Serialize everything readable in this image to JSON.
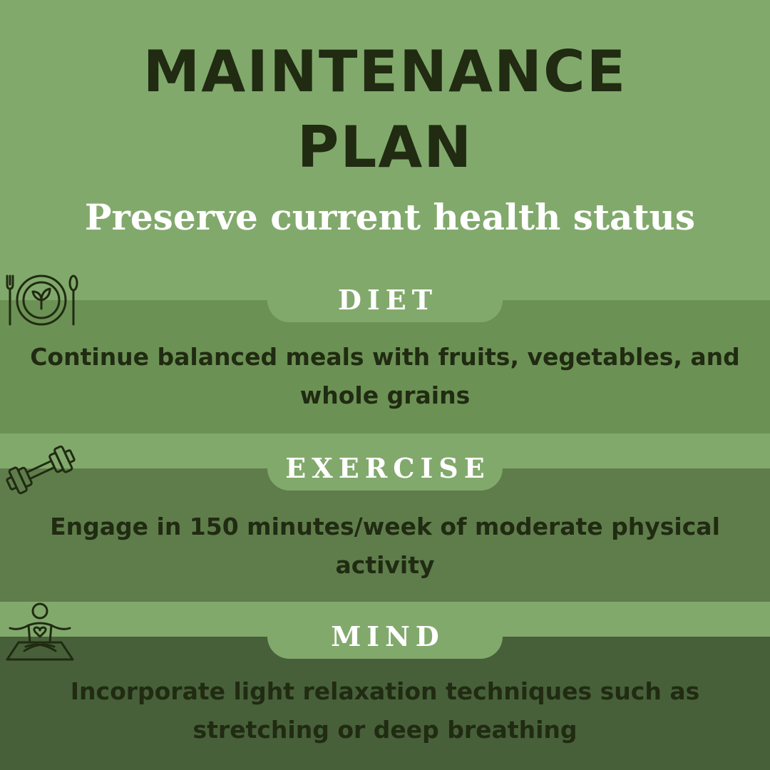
{
  "title": {
    "line1": "MAINTENANCE",
    "line2": "PLAN"
  },
  "subtitle": "Preserve current health status",
  "sections": [
    {
      "label": "DIET",
      "icon": "plate-utensils-icon",
      "text": "Continue balanced meals with fruits, vegetables, and whole grains"
    },
    {
      "label": "EXERCISE",
      "icon": "dumbbell-icon",
      "text": "Engage in 150 minutes/week of moderate physical activity"
    },
    {
      "label": "MIND",
      "icon": "meditation-icon",
      "text": "Incorporate light relaxation techniques such as stretching or deep breathing"
    }
  ],
  "colors": {
    "background": "#82a96c",
    "diet_band": "#6c9154",
    "exercise_band": "#5f7d4b",
    "mind_band": "#47603a",
    "title_text": "#202b12",
    "white_text": "#ffffff"
  }
}
